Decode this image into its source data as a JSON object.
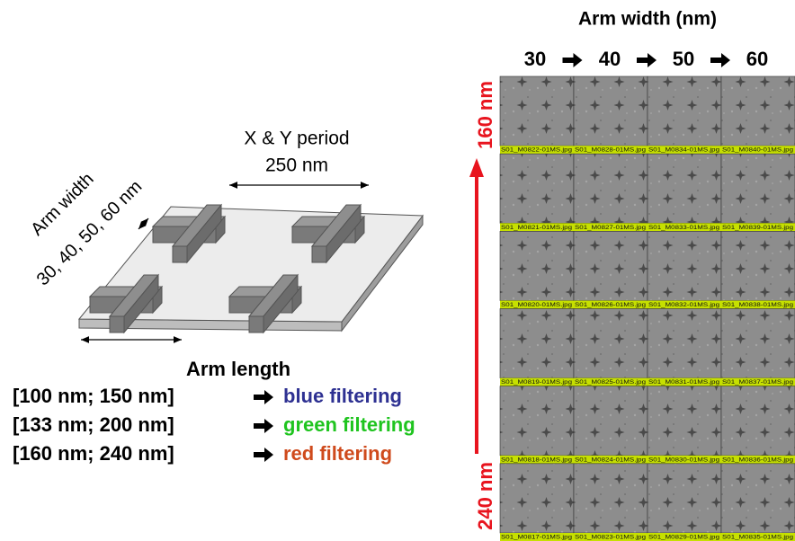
{
  "header": {
    "title": "Arm width (nm)",
    "widths": [
      "30",
      "40",
      "50",
      "60"
    ]
  },
  "vertical_axis": {
    "top": "160 nm",
    "bottom": "240 nm"
  },
  "image_grid": {
    "rows": [
      [
        "S01_M0822-01MS.jpg",
        "S01_M0828-01MS.jpg",
        "S01_M0834-01MS.jpg",
        "S01_M0840-01MS.jpg"
      ],
      [
        "S01_M0821-01MS.jpg",
        "S01_M0827-01MS.jpg",
        "S01_M0833-01MS.jpg",
        "S01_M0839-01MS.jpg"
      ],
      [
        "S01_M0820-01MS.jpg",
        "S01_M0826-01MS.jpg",
        "S01_M0832-01MS.jpg",
        "S01_M0838-01MS.jpg"
      ],
      [
        "S01_M0819-01MS.jpg",
        "S01_M0825-01MS.jpg",
        "S01_M0831-01MS.jpg",
        "S01_M0837-01MS.jpg"
      ],
      [
        "S01_M0818-01MS.jpg",
        "S01_M0824-01MS.jpg",
        "S01_M0830-01MS.jpg",
        "S01_M0836-01MS.jpg"
      ],
      [
        "S01_M0817-01MS.jpg",
        "S01_M0823-01MS.jpg",
        "S01_M0829-01MS.jpg",
        "S01_M0835-01MS.jpg"
      ]
    ]
  },
  "diagram": {
    "period_label": "X & Y period",
    "period_value": "250 nm",
    "arm_width_label": "Arm width",
    "arm_width_values": "30, 40, 50, 60 nm",
    "arm_length_label": "Arm length"
  },
  "filters": [
    {
      "range": "[100 nm; 150 nm]",
      "label": "blue filtering",
      "color": "#2e3192"
    },
    {
      "range": "[133 nm; 200 nm]",
      "label": "green filtering",
      "color": "#1fc41f"
    },
    {
      "range": "[160 nm; 240 nm]",
      "label": "red filtering",
      "color": "#cf4a1c"
    }
  ]
}
